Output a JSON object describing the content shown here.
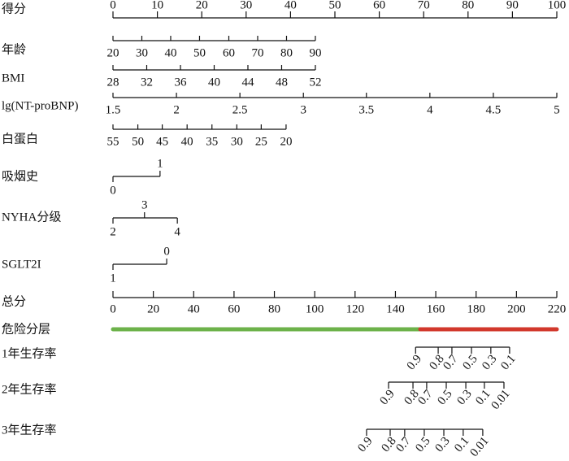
{
  "chart_data": {
    "type": "nomogram",
    "points_axis": {
      "label": "得分",
      "lim": [
        0,
        100
      ],
      "ticks": [
        0,
        10,
        20,
        30,
        40,
        50,
        60,
        70,
        80,
        90,
        100
      ]
    },
    "variables": [
      {
        "name": "年龄",
        "kind": "continuous",
        "ticks": [
          20,
          30,
          40,
          50,
          60,
          70,
          80,
          90
        ],
        "points": [
          0,
          6.5,
          13,
          19.5,
          26.1,
          32.6,
          39.1,
          45.6
        ]
      },
      {
        "name": "BMI",
        "kind": "continuous",
        "ticks": [
          28,
          32,
          36,
          40,
          44,
          48,
          52
        ],
        "points": [
          0,
          7.6,
          15.2,
          22.8,
          30.4,
          38,
          45.6
        ]
      },
      {
        "name": "lg(NT-proBNP)",
        "kind": "continuous",
        "ticks": [
          1.5,
          2,
          2.5,
          3,
          3.5,
          4,
          4.5,
          5
        ],
        "points": [
          0,
          14.3,
          28.6,
          42.9,
          57.1,
          71.4,
          85.7,
          100
        ]
      },
      {
        "name": "白蛋白",
        "kind": "continuous",
        "ticks": [
          55,
          50,
          45,
          40,
          35,
          30,
          25,
          20
        ],
        "points": [
          0,
          5.6,
          11.1,
          16.7,
          22.3,
          27.9,
          33.4,
          39
        ]
      },
      {
        "name": "吸烟史",
        "kind": "categorical",
        "ticks": [
          0,
          1
        ],
        "points": [
          0,
          10.6
        ]
      },
      {
        "name": "NYHA分级",
        "kind": "categorical",
        "ticks": [
          2,
          3,
          4
        ],
        "points": [
          0,
          7.1,
          14.5
        ]
      },
      {
        "name": "SGLT2I",
        "kind": "categorical",
        "ticks": [
          1,
          0
        ],
        "points": [
          0,
          12.1
        ]
      }
    ],
    "total_axis": {
      "label": "总分",
      "lim": [
        0,
        220
      ],
      "ticks": [
        0,
        20,
        40,
        60,
        80,
        100,
        120,
        140,
        160,
        180,
        200,
        220
      ]
    },
    "risk": {
      "label": "危险分层",
      "segments": [
        {
          "color": "#6cb24a",
          "from": 0,
          "to": 152.3
        },
        {
          "color": "#d2382c",
          "from": 152.3,
          "to": 220
        }
      ]
    },
    "survival": [
      {
        "name": "1年生存率",
        "ticks": [
          0.9,
          0.8,
          0.7,
          0.5,
          0.3,
          0.1
        ],
        "total_points": [
          150,
          161.2,
          168,
          177.7,
          187.3,
          196.6
        ]
      },
      {
        "name": "2年生存率",
        "ticks": [
          0.9,
          0.8,
          0.7,
          0.5,
          0.3,
          0.1,
          0.01
        ],
        "total_points": [
          136.6,
          148.7,
          155.5,
          165.2,
          174.9,
          184.1,
          193.8
        ]
      },
      {
        "name": "3年生存率",
        "ticks": [
          0.9,
          0.8,
          0.7,
          0.5,
          0.3,
          0.1,
          0.01
        ],
        "total_points": [
          125.7,
          137.4,
          144.6,
          154.3,
          164,
          173.6,
          183.3
        ]
      }
    ]
  }
}
